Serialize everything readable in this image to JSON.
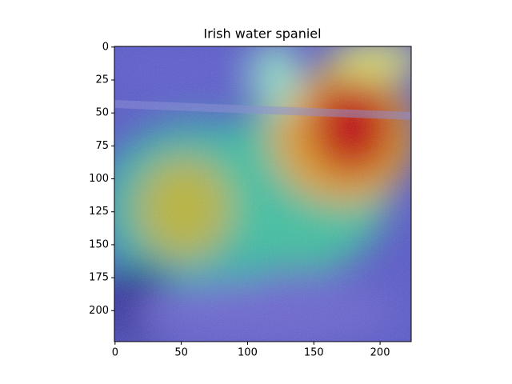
{
  "chart_data": {
    "type": "image",
    "title": "Irish water spaniel",
    "xlim": [
      -0.5,
      223.5
    ],
    "ylim": [
      223.5,
      -0.5
    ],
    "xticks": [
      0,
      50,
      100,
      150,
      200
    ],
    "yticks": [
      0,
      25,
      50,
      75,
      100,
      125,
      150,
      175,
      200
    ]
  }
}
